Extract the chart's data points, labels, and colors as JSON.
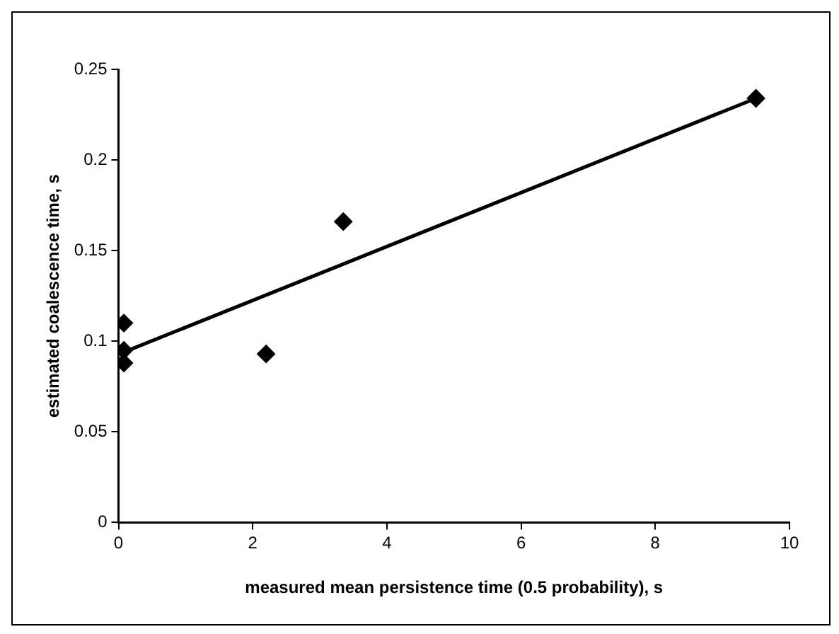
{
  "chart_data": {
    "type": "scatter",
    "xlabel": "measured mean persistence time (0.5 probability), s",
    "ylabel": "estimated coalescence time, s",
    "xlim": [
      0,
      10
    ],
    "xticks": [
      0,
      2,
      4,
      6,
      8,
      10
    ],
    "ylim": [
      0,
      0.25
    ],
    "yticks": [
      0,
      0.05,
      {
        "value": 0.1,
        "label": "0.1"
      },
      0.15,
      {
        "value": 0.2,
        "label": "0.2"
      },
      0.25
    ],
    "grid": false,
    "legend": false,
    "marker": "diamond",
    "series": [
      {
        "color": "#000000",
        "x": [
          0.08,
          0.08,
          0.08,
          2.2,
          3.35,
          9.5
        ],
        "values": [
          0.11,
          0.095,
          0.088,
          0.093,
          0.166,
          0.234
        ]
      },
      {
        "type": "line",
        "color": "#000000",
        "x": [
          0.08,
          9.5
        ],
        "values": [
          0.094,
          0.234
        ],
        "marker": "none",
        "line_style": "solid"
      }
    ]
  }
}
